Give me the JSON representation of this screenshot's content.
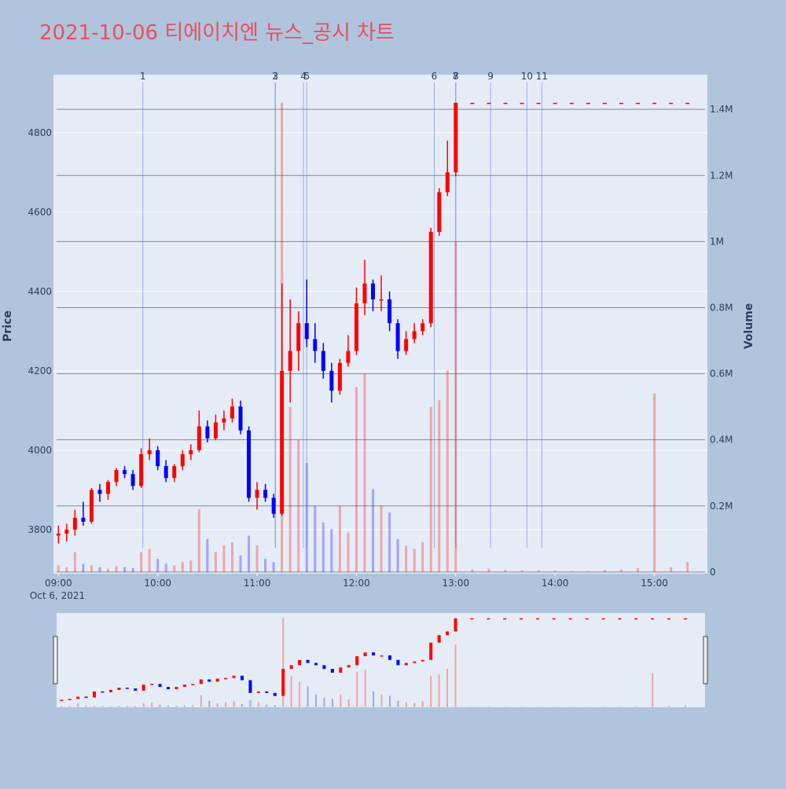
{
  "chart_data": {
    "type": "candlestick",
    "title": "2021-10-06 티에이치엔 뉴스_공시 차트",
    "y_label": "Price",
    "y2_label": "Volume",
    "x_date_label": "Oct 6, 2021",
    "increasing_color": "#ff0000",
    "decreasing_color": "#0000ff",
    "x": [
      "09:00",
      "09:05",
      "09:10",
      "09:15",
      "09:20",
      "09:25",
      "09:30",
      "09:35",
      "09:40",
      "09:45",
      "09:50",
      "09:55",
      "10:00",
      "10:05",
      "10:10",
      "10:15",
      "10:20",
      "10:25",
      "10:30",
      "10:35",
      "10:40",
      "10:45",
      "10:50",
      "10:55",
      "11:00",
      "11:05",
      "11:10",
      "11:15",
      "11:20",
      "11:25",
      "11:30",
      "11:35",
      "11:40",
      "11:45",
      "11:50",
      "11:55",
      "12:00",
      "12:05",
      "12:10",
      "12:15",
      "12:20",
      "12:25",
      "12:30",
      "12:35",
      "12:40",
      "12:45",
      "12:50",
      "12:55",
      "13:00",
      "13:10",
      "13:20",
      "13:30",
      "13:40",
      "13:50",
      "14:00",
      "14:10",
      "14:20",
      "14:30",
      "14:40",
      "14:50",
      "15:00",
      "15:10",
      "15:20"
    ],
    "open": [
      3785,
      3790,
      3800,
      3830,
      3820,
      3900,
      3890,
      3920,
      3950,
      3940,
      3910,
      3990,
      4000,
      3960,
      3930,
      3960,
      3990,
      4000,
      4060,
      4030,
      4070,
      4080,
      4110,
      4050,
      3880,
      3900,
      3880,
      3840,
      4200,
      4250,
      4320,
      4280,
      4250,
      4200,
      4150,
      4220,
      4250,
      4370,
      4420,
      4380,
      4380,
      4320,
      4250,
      4280,
      4300,
      4320,
      4550,
      4650,
      4700,
      4875,
      4875,
      4875,
      4875,
      4875,
      4875,
      4875,
      4875,
      4875,
      4875,
      4875,
      4875,
      4875,
      4875
    ],
    "high": [
      3810,
      3815,
      3850,
      3870,
      3905,
      3915,
      3925,
      3955,
      3960,
      3950,
      4005,
      4030,
      4010,
      3975,
      3965,
      4000,
      4015,
      4100,
      4075,
      4090,
      4100,
      4130,
      4125,
      4060,
      3920,
      3915,
      3890,
      4420,
      4380,
      4350,
      4430,
      4320,
      4270,
      4220,
      4230,
      4290,
      4410,
      4480,
      4430,
      4440,
      4400,
      4330,
      4300,
      4320,
      4330,
      4560,
      4660,
      4780,
      4875,
      4875,
      4875,
      4875,
      4875,
      4875,
      4875,
      4875,
      4875,
      4875,
      4875,
      4875,
      4875,
      4875,
      4875
    ],
    "low": [
      3765,
      3770,
      3785,
      3810,
      3815,
      3870,
      3875,
      3910,
      3930,
      3900,
      3905,
      3975,
      3950,
      3920,
      3920,
      3950,
      3975,
      3995,
      4020,
      4025,
      4050,
      4070,
      4040,
      3870,
      3850,
      3870,
      3830,
      3835,
      4120,
      4200,
      4260,
      4220,
      4180,
      4120,
      4140,
      4210,
      4240,
      4340,
      4350,
      4350,
      4300,
      4230,
      4240,
      4270,
      4290,
      4310,
      4540,
      4640,
      4690,
      4875,
      4875,
      4875,
      4875,
      4875,
      4875,
      4875,
      4875,
      4875,
      4875,
      4875,
      4875,
      4875,
      4875
    ],
    "close": [
      3790,
      3800,
      3830,
      3820,
      3900,
      3890,
      3920,
      3950,
      3940,
      3910,
      3990,
      4000,
      3960,
      3930,
      3960,
      3990,
      4000,
      4060,
      4030,
      4070,
      4080,
      4110,
      4050,
      3880,
      3900,
      3880,
      3840,
      4200,
      4250,
      4320,
      4280,
      4250,
      4200,
      4150,
      4220,
      4250,
      4370,
      4420,
      4380,
      4380,
      4320,
      4250,
      4280,
      4300,
      4320,
      4550,
      4650,
      4700,
      4875,
      4875,
      4875,
      4875,
      4875,
      4875,
      4875,
      4875,
      4875,
      4875,
      4875,
      4875,
      4875,
      4875,
      4875
    ],
    "volume": [
      20000,
      15000,
      60000,
      25000,
      20000,
      15000,
      10000,
      18000,
      15000,
      12000,
      60000,
      70000,
      40000,
      25000,
      20000,
      30000,
      35000,
      190000,
      100000,
      60000,
      80000,
      90000,
      50000,
      110000,
      80000,
      40000,
      30000,
      1420000,
      500000,
      400000,
      330000,
      200000,
      150000,
      130000,
      200000,
      120000,
      560000,
      600000,
      250000,
      200000,
      180000,
      100000,
      80000,
      70000,
      90000,
      500000,
      520000,
      610000,
      1000000,
      8000,
      10000,
      6000,
      5000,
      5000,
      4000,
      3000,
      3000,
      6000,
      8000,
      12000,
      540000,
      15000,
      30000
    ],
    "xlim": [
      "08:57",
      "15:32"
    ],
    "xticks": [
      "09:00",
      "10:00",
      "11:00",
      "12:00",
      "13:00",
      "14:00",
      "15:00"
    ],
    "ylim": [
      3689,
      4946
    ],
    "yticks": [
      3800,
      4000,
      4200,
      4400,
      4600,
      4800
    ],
    "y2lim": [
      -5000,
      1505000
    ],
    "y2ticks": [
      0,
      {
        "value": 200000,
        "label": "0.2M"
      },
      {
        "value": 400000,
        "label": "0.4M"
      },
      {
        "value": 600000,
        "label": "0.6M"
      },
      {
        "value": 800000,
        "label": "0.8M"
      },
      {
        "value": 1000000,
        "label": "1M"
      },
      {
        "value": 1200000,
        "label": "1.2M"
      },
      {
        "value": 1400000,
        "label": "1.4M"
      }
    ],
    "news": [
      {
        "label": "1",
        "time": "09:51"
      },
      {
        "label": "2",
        "time": "11:11"
      },
      {
        "label": "3",
        "time": "11:11"
      },
      {
        "label": "4",
        "time": "11:28"
      },
      {
        "label": "5",
        "time": "11:30"
      },
      {
        "label": "6",
        "time": "12:47"
      },
      {
        "label": "7",
        "time": "13:00"
      },
      {
        "label": "8",
        "time": "13:00"
      },
      {
        "label": "9",
        "time": "13:21"
      },
      {
        "label": "10",
        "time": "13:43"
      },
      {
        "label": "11",
        "time": "13:52"
      }
    ]
  }
}
